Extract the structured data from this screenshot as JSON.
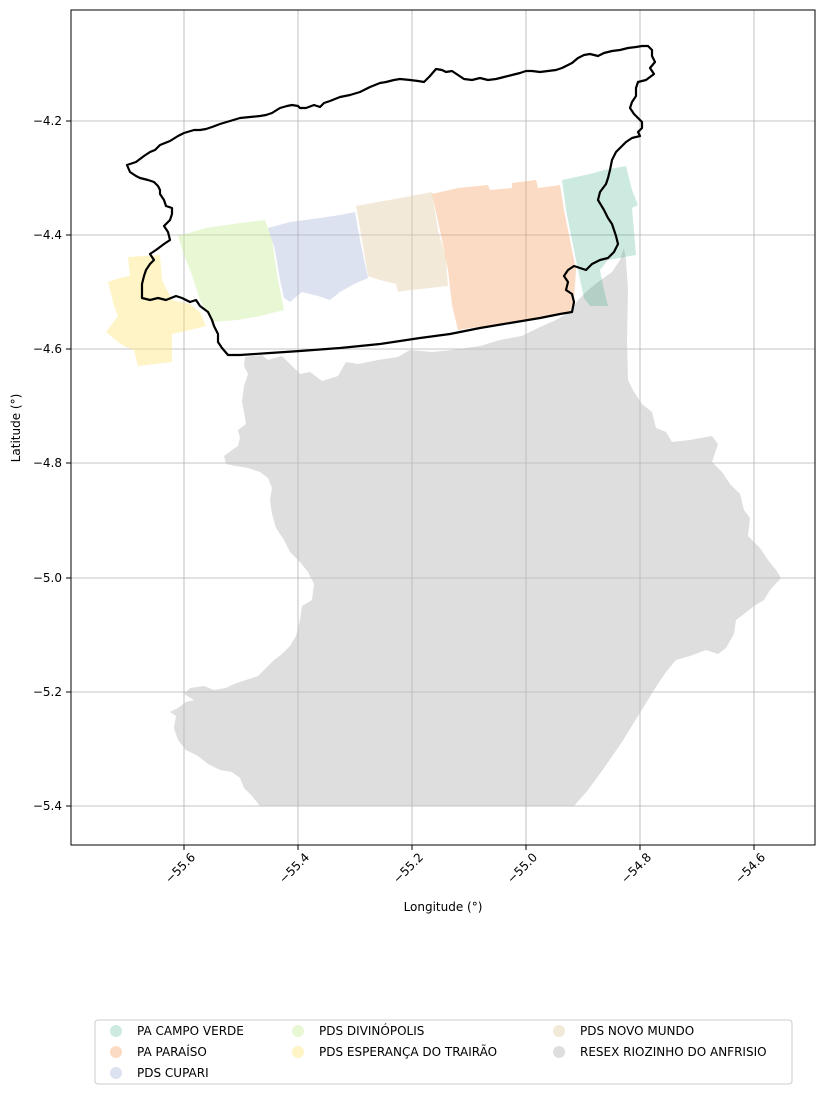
{
  "chart_data": {
    "type": "map",
    "xlabel": "Longitude (°)",
    "ylabel": "Latitude (°)",
    "xlim": [
      -55.8,
      -54.5
    ],
    "ylim": [
      -5.47,
      -4.02
    ],
    "x_ticks": [
      -55.6,
      -55.4,
      -55.2,
      -55.0,
      -54.8,
      -54.6
    ],
    "x_tick_labels": [
      "−55.6",
      "−55.4",
      "−55.2",
      "−55.0",
      "−54.8",
      "−54.6"
    ],
    "y_ticks": [
      -4.2,
      -4.4,
      -4.6,
      -4.8,
      -5.0,
      -5.2,
      -5.4
    ],
    "y_tick_labels": [
      "−4.2",
      "−4.4",
      "−4.6",
      "−4.8",
      "−5.0",
      "−5.2",
      "−5.4"
    ],
    "grid": true,
    "legend_placement": "bottom-center",
    "legend": [
      {
        "label": "PA CAMPO VERDE",
        "color": "#1b9e77"
      },
      {
        "label": "PA PARAÍSO",
        "color": "#f4a46a"
      },
      {
        "label": "PDS CUPARI",
        "color": "#a9b7dd"
      },
      {
        "label": "PDS DIVINÓPOLIS",
        "color": "#cdeea0"
      },
      {
        "label": "PDS ESPERANÇA DO TRAIRÃO",
        "color": "#ffe680"
      },
      {
        "label": "PDS NOVO MUNDO",
        "color": "#e5ceaa"
      },
      {
        "label": "RESEX RIOZINHO DO ANFRISIO",
        "color": "#bdbdbd"
      }
    ],
    "boundary_color": "#000000"
  }
}
